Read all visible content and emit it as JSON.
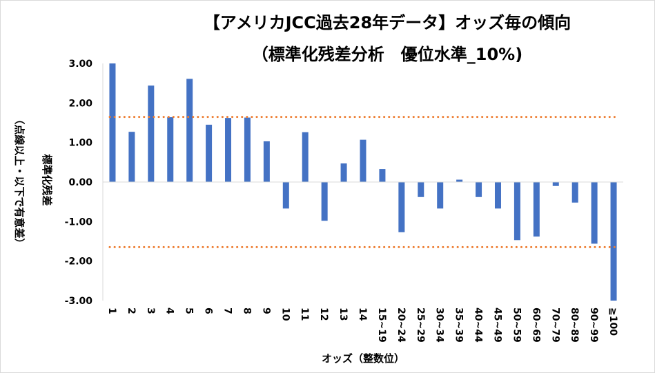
{
  "chart_data": {
    "type": "bar",
    "title_line1": "【アメリカJCC過去28年データ】オッズ毎の傾向",
    "title_line2": "（標準化残差分析　優位水準_10%)",
    "xlabel": "オッズ（整数位）",
    "ylabel_line1": "標準化残差",
    "ylabel_line2": "（点線以上・以下で有意差）",
    "ylim": [
      -3.0,
      3.0
    ],
    "yticks": [
      "3.00",
      "2.00",
      "1.00",
      "0.00",
      "-1.00",
      "-2.00",
      "-3.00"
    ],
    "ytick_values": [
      3,
      2,
      1,
      0,
      -1,
      -2,
      -3
    ],
    "categories": [
      "1",
      "2",
      "3",
      "4",
      "5",
      "6",
      "7",
      "8",
      "9",
      "10",
      "11",
      "12",
      "13",
      "14",
      "15~19",
      "20~24",
      "25~29",
      "30~34",
      "35~39",
      "40~44",
      "45~49",
      "50~59",
      "60~69",
      "70~79",
      "80~89",
      "90~99",
      "≧100"
    ],
    "series": [
      {
        "name": "標準化残差",
        "values": [
          3.0,
          1.27,
          2.44,
          1.64,
          2.61,
          1.45,
          1.62,
          1.63,
          1.03,
          -0.67,
          1.26,
          -0.98,
          0.47,
          1.07,
          0.33,
          -1.27,
          -0.38,
          -0.67,
          0.06,
          -0.38,
          -0.67,
          -1.47,
          -1.38,
          -0.1,
          -0.52,
          -1.56,
          -3.0
        ]
      }
    ],
    "threshold_lines": [
      1.645,
      -1.645
    ],
    "colors": {
      "bar": "#4472c4",
      "threshold": "#ed7d31",
      "axis": "#d9d9d9"
    }
  }
}
